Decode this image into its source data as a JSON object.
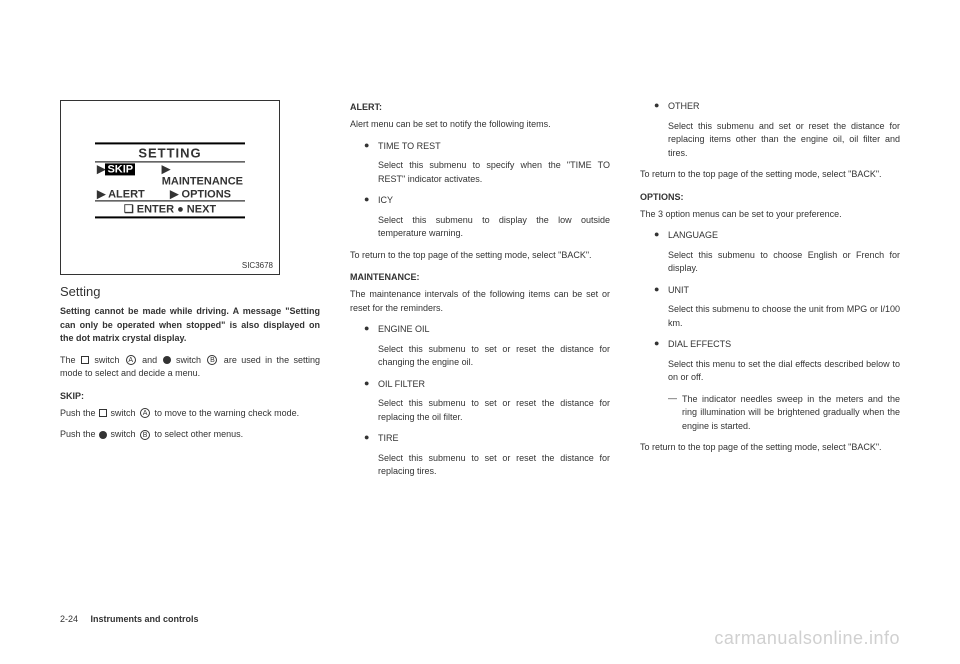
{
  "figure": {
    "title": "SETTING",
    "row1_left": "SKIP",
    "row1_right": "MAINTENANCE",
    "row2_left": "ALERT",
    "row2_right": "OPTIONS",
    "bottom": "❏ ENTER  ● NEXT",
    "code": "SIC3678"
  },
  "col1": {
    "heading": "Setting",
    "bold_para": "Setting cannot be made while driving. A message \"Setting can only be operated when stopped\" is also displayed on the dot matrix crystal display.",
    "para1_a": "The ",
    "para1_b": " switch ",
    "para1_c": " and ",
    "para1_d": " switch ",
    "para1_e": " are used in the setting mode to select and decide a menu.",
    "skip_head": "SKIP:",
    "skip_a": "Push the ",
    "skip_b": " switch ",
    "skip_c": " to move to the warning check mode.",
    "push_a": "Push the ",
    "push_b": " switch ",
    "push_c": " to select other menus.",
    "letterA": "A",
    "letterB": "B"
  },
  "col2": {
    "alert_head": "ALERT:",
    "alert_para": "Alert menu can be set to notify the following items.",
    "time_label": "TIME TO REST",
    "time_desc": "Select this submenu to specify when the \"TIME TO REST\" indicator activates.",
    "icy_label": "ICY",
    "icy_desc": "Select this submenu to display the low outside temperature warning.",
    "return_para": "To return to the top page of the setting mode, select \"BACK\".",
    "maint_head": "MAINTENANCE:",
    "maint_para": "The maintenance intervals of the following items can be set or reset for the reminders.",
    "oil_label": "ENGINE OIL",
    "oil_desc": "Select this submenu to set or reset the distance for changing the engine oil.",
    "filter_label": "OIL FILTER",
    "filter_desc": "Select this submenu to set or reset the distance for replacing the oil filter.",
    "tire_label": "TIRE",
    "tire_desc": "Select this submenu to set or reset the distance for replacing tires."
  },
  "col3": {
    "other_label": "OTHER",
    "other_desc": "Select this submenu and set or reset the distance for replacing items other than the engine oil, oil filter and tires.",
    "return_para": "To return to the top page of the setting mode, select \"BACK\".",
    "options_head": "OPTIONS:",
    "options_para": "The 3 option menus can be set to your preference.",
    "lang_label": "LANGUAGE",
    "lang_desc": "Select this submenu to choose English or French for display.",
    "unit_label": "UNIT",
    "unit_desc": "Select this submenu to choose the unit from MPG or l/100 km.",
    "dial_label": "DIAL EFFECTS",
    "dial_desc": "Select this menu to set the dial effects described below to on or off.",
    "dial_dash": "The indicator needles sweep in the meters and the ring illumination will be brightened gradually when the engine is started.",
    "return_para2": "To return to the top page of the setting mode, select \"BACK\"."
  },
  "footer": {
    "page": "2-24",
    "title": "Instruments and controls"
  },
  "watermark": "carmanualsonline.info"
}
